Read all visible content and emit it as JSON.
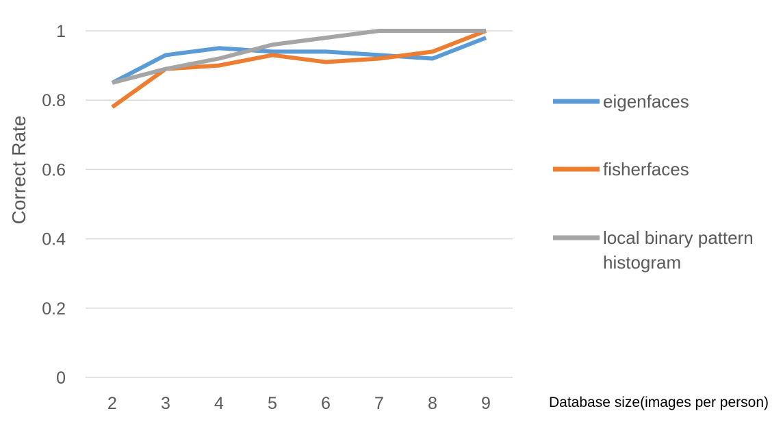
{
  "chart_data": {
    "type": "line",
    "title": "",
    "xlabel": "Database size(images per person)",
    "ylabel": "Correct Rate",
    "x": [
      2,
      3,
      4,
      5,
      6,
      7,
      8,
      9
    ],
    "x_tick_labels": [
      "2",
      "3",
      "4",
      "5",
      "6",
      "7",
      "8",
      "9"
    ],
    "y_tick_labels": [
      "0",
      "0.2",
      "0.4",
      "0.6",
      "0.8",
      "1"
    ],
    "y_ticks": [
      0,
      0.2,
      0.4,
      0.6,
      0.8,
      1
    ],
    "ylim": [
      0,
      1
    ],
    "grid": true,
    "legend_position": "right",
    "series": [
      {
        "name": "eigenfaces",
        "legend_lines": [
          "eigenfaces"
        ],
        "color": "#5B9BD5",
        "values": [
          0.85,
          0.93,
          0.95,
          0.94,
          0.94,
          0.93,
          0.92,
          0.98
        ]
      },
      {
        "name": "fisherfaces",
        "legend_lines": [
          "fisherfaces"
        ],
        "color": "#ED7D31",
        "values": [
          0.78,
          0.89,
          0.9,
          0.93,
          0.91,
          0.92,
          0.94,
          1.0
        ]
      },
      {
        "name": "local binary pattern histogram",
        "legend_lines": [
          "local binary pattern",
          "histogram"
        ],
        "color": "#A5A5A5",
        "values": [
          0.85,
          0.89,
          0.92,
          0.96,
          0.98,
          1.0,
          1.0,
          1.0
        ]
      }
    ],
    "gridline_color": "#D9D9D9"
  }
}
